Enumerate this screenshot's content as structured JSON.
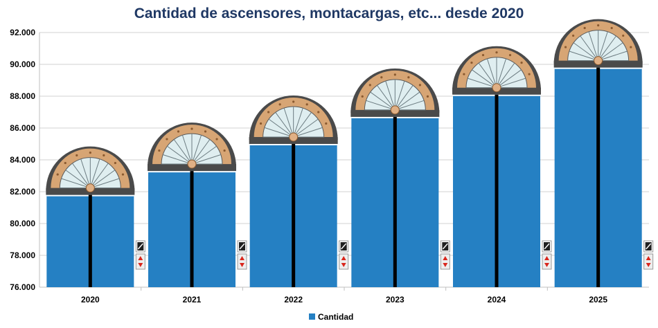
{
  "chart_data": {
    "type": "bar",
    "title": "Cantidad de ascensores, montacargas, etc... desde 2020",
    "categories": [
      "2020",
      "2021",
      "2022",
      "2023",
      "2024",
      "2025"
    ],
    "series": [
      {
        "name": "Cantidad",
        "values": [
          81800,
          83300,
          85000,
          86700,
          88100,
          89800
        ]
      }
    ],
    "ylim": [
      76000,
      92000
    ],
    "ytick_step": 2000,
    "ytick_labels": [
      "76.000",
      "78.000",
      "80.000",
      "82.000",
      "84.000",
      "86.000",
      "88.000",
      "90.000",
      "92.000"
    ],
    "xlabel": "",
    "ylabel": "",
    "grid": true,
    "legend_position": "bottom",
    "colors": {
      "bar": "#2580c3",
      "grid": "#d0d0d0",
      "title": "#1f3864",
      "arch_wood": "#d7a574",
      "arch_frame": "#4a4a4a",
      "glass": "#dfeef0"
    },
    "decorations": {
      "bar_style": "elevator-door",
      "bar_top": "fanlight-arch",
      "panel_icon": "elevator-call-panel-icon"
    }
  }
}
